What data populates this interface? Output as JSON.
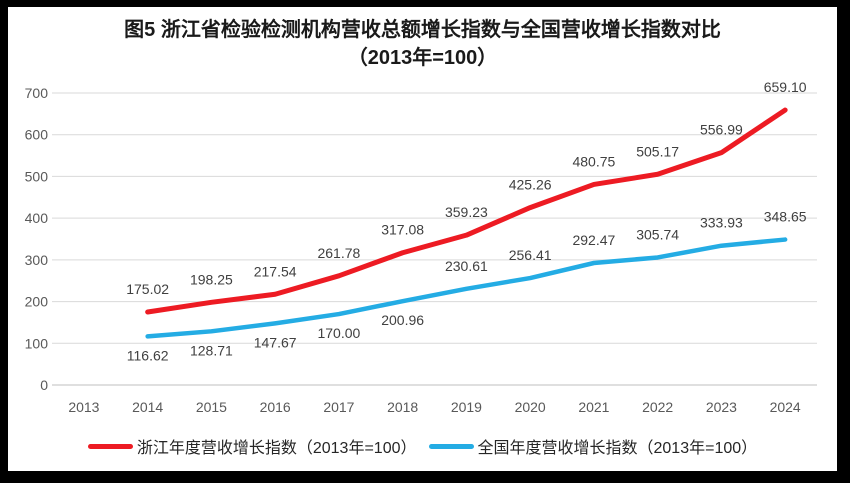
{
  "title": {
    "line1": "图5  浙江省检验检测机构营收总额增长指数与全国营收增长指数对比",
    "line2": "（2013年=100）"
  },
  "chart_data": {
    "type": "line",
    "title": "图5 浙江省检验检测机构营收总额增长指数与全国营收增长指数对比（2013年=100）",
    "categories": [
      "2013",
      "2014",
      "2015",
      "2016",
      "2017",
      "2018",
      "2019",
      "2020",
      "2021",
      "2022",
      "2023",
      "2024"
    ],
    "series": [
      {
        "name": "浙江年度营收增长指数（2013年=100）",
        "color": "#ed1b23",
        "values": [
          null,
          175.02,
          198.25,
          217.54,
          261.78,
          317.08,
          359.23,
          425.26,
          480.75,
          505.17,
          556.99,
          659.1
        ],
        "label_position": "above"
      },
      {
        "name": "全国年度营收增长指数（2013年=100）",
        "color": "#24ace4",
        "values": [
          null,
          116.62,
          128.71,
          147.67,
          170.0,
          200.96,
          230.61,
          256.41,
          292.47,
          305.74,
          333.93,
          348.65
        ],
        "label_position": [
          "below",
          "below",
          "below",
          "below",
          "below",
          "below",
          "above",
          "above",
          "above",
          "above",
          "above",
          "above"
        ]
      }
    ],
    "xlabel": "",
    "ylabel": "",
    "ylim": [
      0,
      700
    ],
    "ytick_step": 100,
    "yticks": [
      "0",
      "100",
      "200",
      "300",
      "400",
      "500",
      "600",
      "700"
    ],
    "grid": true,
    "legend_position": "bottom"
  }
}
